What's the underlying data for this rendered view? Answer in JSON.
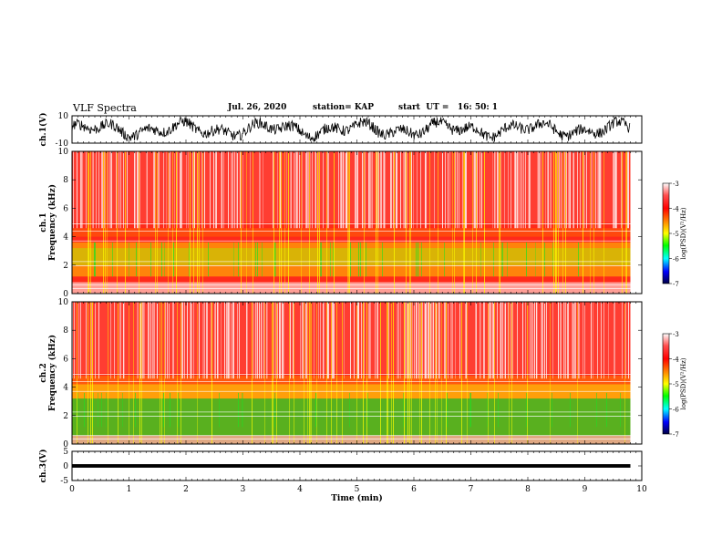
{
  "header": {
    "title": "VLF Spectra",
    "date": "Jul. 26, 2020",
    "station": "station= KAP",
    "start_ut": "start  UT =   16: 50: 1"
  },
  "chart_data": [
    {
      "type": "line",
      "panel": "ch1-waveform",
      "ylabel": "ch.1(V)",
      "ylim": [
        -10,
        10
      ],
      "yticks": [
        "10",
        "-10"
      ],
      "xlim": [
        0,
        10
      ],
      "description_values": "fluctuating trace between about -9 and +9 V from 0 to 9.8 min"
    },
    {
      "type": "heatmap",
      "panel": "ch1-spectrogram",
      "ylabel": "ch.1\nFrequency (kHz)",
      "ylim": [
        0,
        10
      ],
      "yticks": [
        "0",
        "2",
        "4",
        "6",
        "8",
        "10"
      ],
      "xlim": [
        0,
        10
      ],
      "data_extent_min": 9.8,
      "colorbar": {
        "label": "log(PSD)(V²/Hz)",
        "range": [
          -7,
          -3
        ],
        "ticks": [
          "-3",
          "-4",
          "-5",
          "-6",
          "-7"
        ]
      }
    },
    {
      "type": "heatmap",
      "panel": "ch2-spectrogram",
      "ylabel": "ch.2\nFrequency (kHz)",
      "ylim": [
        0,
        10
      ],
      "yticks": [
        "0",
        "2",
        "4",
        "6",
        "8",
        "10"
      ],
      "xlim": [
        0,
        10
      ],
      "data_extent_min": 9.8,
      "colorbar": {
        "label": "log(PSD)(V²/Hz)",
        "range": [
          -7,
          -3
        ],
        "ticks": [
          "-3",
          "-4",
          "-5",
          "-6",
          "-7"
        ]
      }
    },
    {
      "type": "line",
      "panel": "ch3-waveform",
      "ylabel": "ch.3(V)",
      "ylim": [
        -5,
        5
      ],
      "yticks": [
        "5",
        "0",
        "-5"
      ],
      "xlim": [
        0,
        10
      ],
      "xlabel": "Time (min)",
      "xticks": [
        "0",
        "1",
        "2",
        "3",
        "4",
        "5",
        "6",
        "7",
        "8",
        "9",
        "10"
      ]
    }
  ],
  "colors": {
    "red": "#ff2a1a",
    "orange": "#ff8c00",
    "yellow": "#ffff00",
    "green": "#22dd22",
    "white": "#ffffff",
    "trace": "#000000"
  }
}
